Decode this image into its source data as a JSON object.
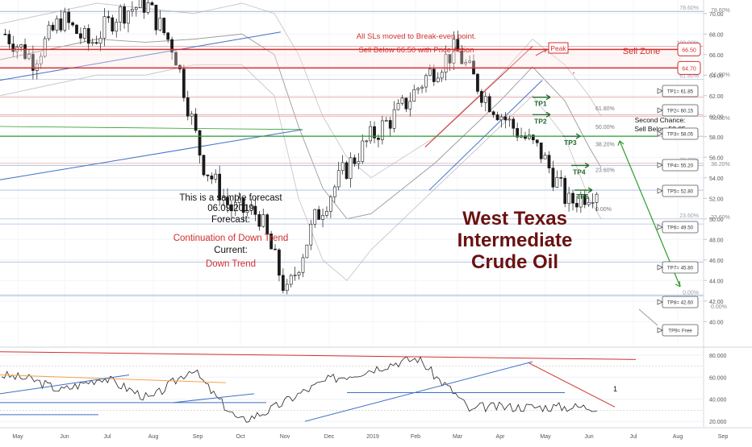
{
  "chart_data": {
    "type": "candlestick",
    "title": "West Texas Intermediate Crude Oil",
    "title_lines": [
      "West Texas",
      "Intermediate",
      "Crude Oil"
    ],
    "y_axis_ticks": [
      "70.00",
      "68.00",
      "66.00",
      "64.00",
      "62.00",
      "60.00",
      "58.00",
      "56.00",
      "54.00",
      "52.00",
      "50.00",
      "48.00",
      "46.00",
      "44.00",
      "42.00",
      "40.00"
    ],
    "ylim": [
      39,
      71
    ],
    "x_axis_ticks": [
      "May",
      "Jun",
      "Jul",
      "Aug",
      "Sep",
      "Oct",
      "Nov",
      "Dec",
      "2019",
      "Feb",
      "Mar",
      "Apr",
      "May",
      "Jun",
      "Jul",
      "Aug",
      "Sep"
    ],
    "close_path": [
      [
        "2018-05",
        68.0
      ],
      [
        "2018-06",
        65.5
      ],
      [
        "2018-07",
        69.5
      ],
      [
        "2018-08",
        67.0
      ],
      [
        "2018-09",
        70.0
      ],
      [
        "2018-10",
        71.0
      ],
      [
        "2018-10b",
        66.5
      ],
      [
        "2018-11",
        55.5
      ],
      [
        "2018-11b",
        51.0
      ],
      [
        "2018-12",
        50.5
      ],
      [
        "2018-12b",
        42.6
      ],
      [
        "2019-01",
        50.0
      ],
      [
        "2019-02",
        54.5
      ],
      [
        "2019-03",
        58.0
      ],
      [
        "2019-03b",
        60.5
      ],
      [
        "2019-04",
        64.0
      ],
      [
        "2019-04b",
        66.5
      ],
      [
        "2019-05",
        62.0
      ],
      [
        "2019-05b",
        59.0
      ],
      [
        "2019-05c",
        56.5
      ],
      [
        "2019-06",
        51.5
      ],
      [
        "2019-06b",
        53.0
      ]
    ],
    "annotations": {
      "note_line1": "All SLs moved to Break-even point.",
      "note_line2": "Sell Below 66.50 with Price Action",
      "sell_zone": "Sell Zone",
      "zone_top": "66.50",
      "zone_bottom": "64.70",
      "peak": "Peak",
      "second_chance_1": "Second Chance:",
      "second_chance_2": "Sell Below 58.05",
      "sample_1": "This is a sample forecast",
      "sample_2": "06.09.2019",
      "forecast_label": "Forecast:",
      "forecast_value": "Continuation of Down Trend",
      "current_label": "Current:",
      "current_value": "Down Trend"
    },
    "targets": [
      {
        "label": "TP1= 61.85",
        "value": 61.85
      },
      {
        "label": "TP2= 60.15",
        "value": 60.15
      },
      {
        "label": "TP3= 58.05",
        "value": 58.05
      },
      {
        "label": "TP4= 55.20",
        "value": 55.2
      },
      {
        "label": "TP5= 52.80",
        "value": 52.8
      },
      {
        "label": "TP6= 49.50",
        "value": 49.5
      },
      {
        "label": "TP7= 45.80",
        "value": 45.8
      },
      {
        "label": "TP8= 42.60",
        "value": 42.6
      },
      {
        "label": "TP9= Free",
        "value": null
      }
    ],
    "tp_arrows": [
      "TP1",
      "TP2",
      "TP3",
      "TP4",
      "TP5"
    ],
    "fib_right": [
      {
        "label": "78.60%",
        "value": 70.2
      },
      {
        "label": "100.00%",
        "value": 66.8
      },
      {
        "label": "61.80%",
        "value": 63.6
      },
      {
        "label": "50.00%",
        "value": 60.0
      },
      {
        "label": "38.20%",
        "value": 55.4
      },
      {
        "label": "23.60%",
        "value": 50.0
      },
      {
        "label": "0.00%",
        "value": 42.5
      }
    ],
    "fib_local": [
      {
        "label": "61.80%",
        "value": 60.8
      },
      {
        "label": "50.00%",
        "value": 59.0
      },
      {
        "label": "38.20%",
        "value": 57.3
      },
      {
        "label": "23.60%",
        "value": 54.8
      },
      {
        "label": "0.00%",
        "value": 51.0
      }
    ],
    "indicator": {
      "ticks": [
        "80.000",
        "60.000",
        "40.000",
        "20.000"
      ],
      "ylim": [
        15,
        85
      ],
      "label": "1",
      "path": [
        [
          0,
          62
        ],
        [
          0.05,
          58
        ],
        [
          0.1,
          48
        ],
        [
          0.17,
          60
        ],
        [
          0.25,
          40
        ],
        [
          0.32,
          68
        ],
        [
          0.36,
          42
        ],
        [
          0.4,
          20
        ],
        [
          0.45,
          30
        ],
        [
          0.5,
          45
        ],
        [
          0.55,
          58
        ],
        [
          0.6,
          64
        ],
        [
          0.66,
          73
        ],
        [
          0.7,
          77
        ],
        [
          0.73,
          60
        ],
        [
          0.76,
          46
        ],
        [
          0.79,
          28
        ],
        [
          0.8,
          33
        ]
      ]
    }
  }
}
